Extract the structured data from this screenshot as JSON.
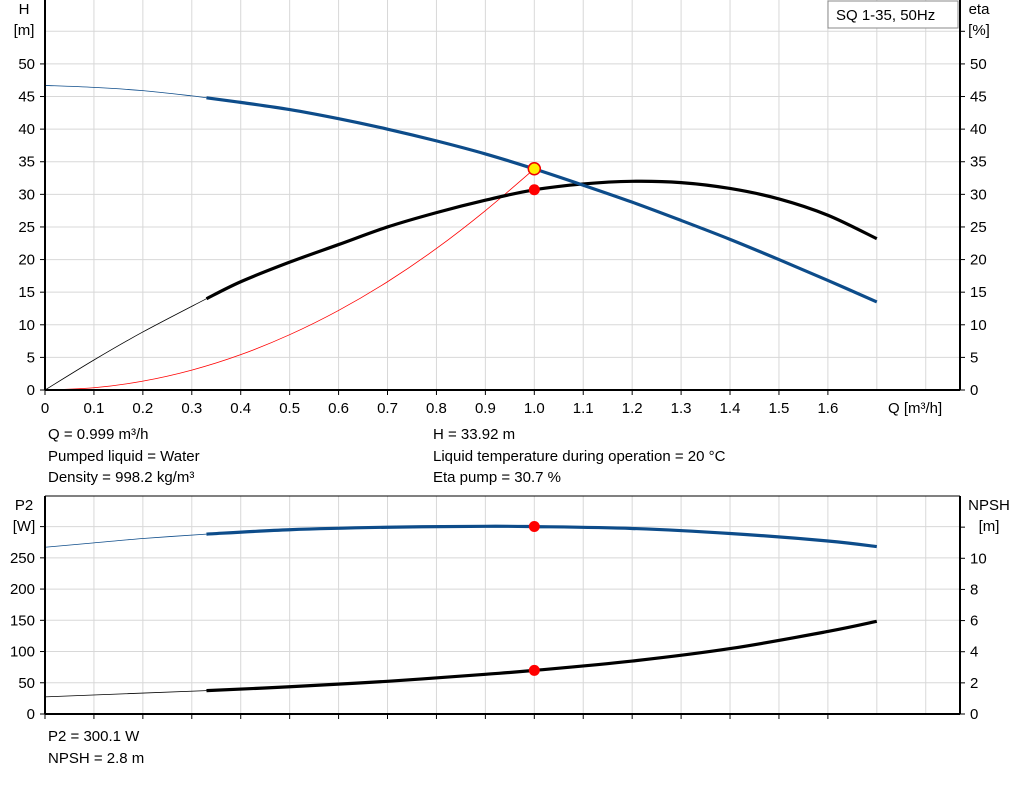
{
  "chart_data": [
    {
      "type": "line",
      "legend_box": "SQ 1-35, 50Hz",
      "xlabel": "Q [m³/h]",
      "xlim": [
        0,
        1.87
      ],
      "xticks": [
        "0",
        "0.1",
        "0.2",
        "0.3",
        "0.4",
        "0.5",
        "0.6",
        "0.7",
        "0.8",
        "0.9",
        "1.0",
        "1.1",
        "1.2",
        "1.3",
        "1.4",
        "1.5",
        "1.6"
      ],
      "ylabel_left": [
        "H",
        "[m]"
      ],
      "ylabel_right": [
        "eta",
        "[%]"
      ],
      "ylim": [
        0,
        59.8
      ],
      "yticks": [
        "0",
        "5",
        "10",
        "15",
        "20",
        "25",
        "30",
        "35",
        "40",
        "45",
        "50"
      ],
      "grid": true,
      "series": [
        {
          "key": "H",
          "axis": "left",
          "color": "#0d4c8a",
          "thick_from": 0.33,
          "x": [
            0,
            0.1,
            0.2,
            0.3,
            0.33,
            0.4,
            0.5,
            0.6,
            0.7,
            0.8,
            0.9,
            1.0,
            1.1,
            1.2,
            1.3,
            1.4,
            1.5,
            1.6,
            1.7
          ],
          "y": [
            46.7,
            46.4,
            45.9,
            45.1,
            44.8,
            44.1,
            43.0,
            41.6,
            40.0,
            38.2,
            36.2,
            33.9,
            31.4,
            28.8,
            26.0,
            23.1,
            20.0,
            16.8,
            13.5
          ]
        },
        {
          "key": "eta",
          "axis": "right",
          "color": "#000000",
          "thick_from": 0.33,
          "x": [
            0,
            0.1,
            0.2,
            0.33,
            0.4,
            0.5,
            0.6,
            0.7,
            0.8,
            0.9,
            1.0,
            1.1,
            1.2,
            1.3,
            1.4,
            1.5,
            1.6,
            1.7
          ],
          "y": [
            0,
            4.6,
            8.9,
            14.0,
            16.6,
            19.6,
            22.3,
            25.0,
            27.2,
            29.1,
            30.7,
            31.6,
            32.0,
            31.8,
            30.9,
            29.3,
            26.8,
            23.2
          ]
        },
        {
          "key": "system",
          "axis": "left",
          "color": "#ff0000",
          "x": [
            0,
            0.1,
            0.2,
            0.3,
            0.4,
            0.5,
            0.6,
            0.7,
            0.8,
            0.9,
            1.0
          ],
          "y": [
            0,
            0.34,
            1.36,
            3.05,
            5.42,
            8.48,
            12.2,
            16.6,
            21.7,
            27.5,
            33.9
          ]
        }
      ],
      "duty_point": {
        "x": 1.0,
        "H": 33.92,
        "eta": 30.7
      },
      "info": {
        "q": "Q = 0.999 m³/h",
        "liquid": "Pumped liquid = Water",
        "density": "Density = 998.2 kg/m³",
        "h": "H = 33.92 m",
        "temp": "Liquid temperature during operation = 20 °C",
        "eta": "Eta pump = 30.7 %"
      }
    },
    {
      "type": "line",
      "xlim": [
        0,
        1.87
      ],
      "ylabel_left": [
        "P2",
        "[W]"
      ],
      "ylabel_right": [
        "NPSH",
        "[m]"
      ],
      "ylim_left": [
        0,
        349
      ],
      "ylim_right": [
        0,
        14
      ],
      "yticks_left": [
        "0",
        "50",
        "100",
        "150",
        "200",
        "250"
      ],
      "yticks_right": [
        "0",
        "2",
        "4",
        "6",
        "8",
        "10"
      ],
      "grid": true,
      "series": [
        {
          "key": "P2",
          "axis": "left",
          "color": "#0d4c8a",
          "thick_from": 0.33,
          "x": [
            0,
            0.1,
            0.2,
            0.33,
            0.5,
            0.7,
            0.9,
            1.0,
            1.2,
            1.4,
            1.6,
            1.7
          ],
          "y": [
            267,
            274,
            281,
            288,
            295,
            299,
            300.5,
            300,
            297,
            289,
            277,
            268
          ]
        },
        {
          "key": "NPSH",
          "axis": "right",
          "color": "#000000",
          "thick_from": 0.33,
          "x": [
            0,
            0.33,
            0.5,
            0.7,
            0.9,
            1.0,
            1.2,
            1.4,
            1.6,
            1.7
          ],
          "y": [
            1.1,
            1.5,
            1.75,
            2.1,
            2.55,
            2.8,
            3.4,
            4.2,
            5.3,
            5.95
          ]
        }
      ],
      "duty_point": {
        "x": 1.0,
        "P2": 300.1,
        "NPSH": 2.8
      },
      "info": {
        "p2": "P2 = 300.1 W",
        "npsh": "NPSH = 2.8 m"
      }
    }
  ]
}
